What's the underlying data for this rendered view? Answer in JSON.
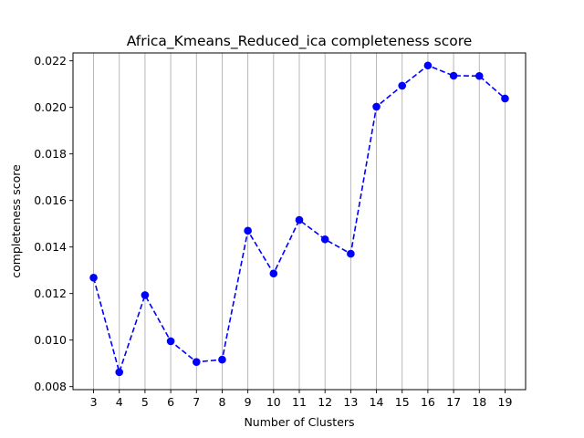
{
  "chart_data": {
    "type": "line",
    "title": "Africa_Kmeans_Reduced_ica completeness score",
    "xlabel": "Number of Clusters",
    "ylabel": "completeness score",
    "x": [
      3,
      4,
      5,
      6,
      7,
      8,
      9,
      10,
      11,
      12,
      13,
      14,
      15,
      16,
      17,
      18,
      19
    ],
    "series": [
      {
        "values": [
          0.01268,
          0.00862,
          0.01193,
          0.00995,
          0.00906,
          0.00916,
          0.0147,
          0.01286,
          0.01516,
          0.01433,
          0.01371,
          0.02003,
          0.02093,
          0.0218,
          0.02136,
          0.02135,
          0.02038
        ],
        "color": "#0000ff",
        "linestyle": "dashed",
        "marker": "circle"
      }
    ],
    "xlim": [
      2.2,
      19.8
    ],
    "ylim": [
      0.00787,
      0.02234
    ],
    "xticks": [
      "3",
      "4",
      "5",
      "6",
      "7",
      "8",
      "9",
      "10",
      "11",
      "12",
      "13",
      "14",
      "15",
      "16",
      "17",
      "18",
      "19"
    ],
    "yticks": [
      "0.008",
      "0.010",
      "0.012",
      "0.014",
      "0.016",
      "0.018",
      "0.020",
      "0.022"
    ],
    "grid": "vertical",
    "grid_color": "#b0b0b0",
    "legend": "none"
  }
}
